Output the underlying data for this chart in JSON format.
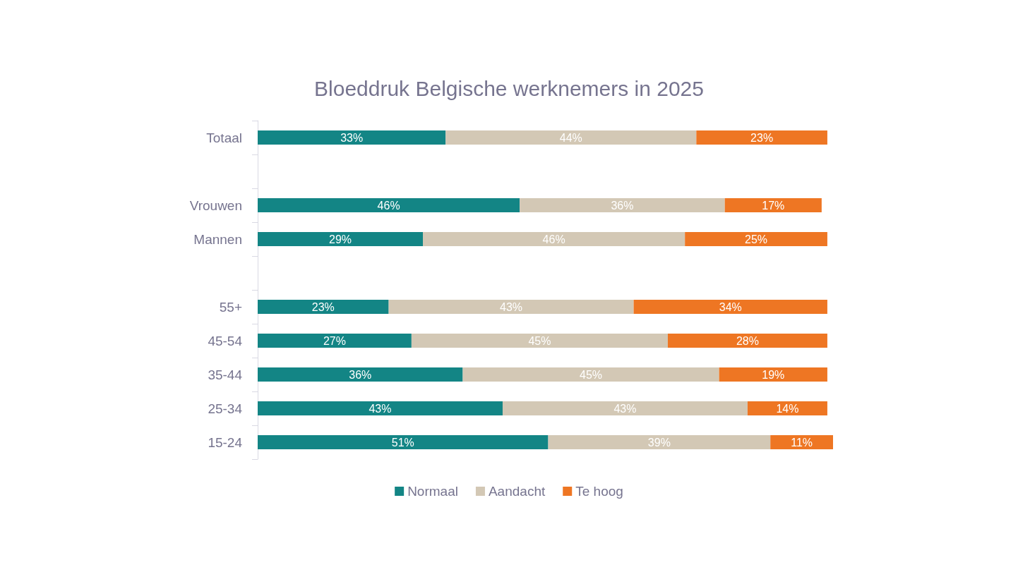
{
  "chart_data": {
    "type": "bar",
    "orientation": "horizontal",
    "stacked": true,
    "title": "Bloeddruk Belgische werknemers in 2025",
    "categories": [
      "Totaal",
      null,
      "Vrouwen",
      "Mannen",
      null,
      "55+",
      "45-54",
      "35-44",
      "25-34",
      "15-24"
    ],
    "series": [
      {
        "name": "Normaal",
        "color": "#138585",
        "values": [
          33,
          null,
          46,
          29,
          null,
          23,
          27,
          36,
          43,
          51
        ],
        "value_labels": [
          "33%",
          null,
          "46%",
          "29%",
          null,
          "23%",
          "27%",
          "36%",
          "43%",
          "51%"
        ]
      },
      {
        "name": "Aandacht",
        "color": "#d3c8b5",
        "values": [
          44,
          null,
          36,
          46,
          null,
          43,
          45,
          45,
          43,
          39
        ],
        "value_labels": [
          "44%",
          null,
          "36%",
          "46%",
          null,
          "43%",
          "45%",
          "45%",
          "43%",
          "39%"
        ]
      },
      {
        "name": "Te hoog",
        "color": "#ee7623",
        "values": [
          23,
          null,
          17,
          25,
          null,
          34,
          28,
          19,
          14,
          11
        ],
        "value_labels": [
          "23%",
          null,
          "17%",
          "25%",
          null,
          "34%",
          "28%",
          "19%",
          "14%",
          "11%"
        ]
      }
    ],
    "legend": "bottom",
    "grid": false
  }
}
